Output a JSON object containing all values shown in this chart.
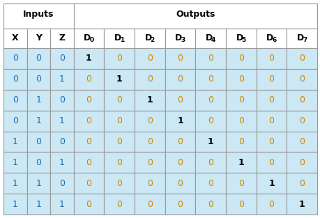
{
  "title_inputs": "Inputs",
  "title_outputs": "Outputs",
  "col_headers_base": [
    "X",
    "Y",
    "Z",
    "D",
    "D",
    "D",
    "D",
    "D",
    "D",
    "D",
    "D"
  ],
  "col_headers_sub": [
    "",
    "",
    "",
    "0",
    "1",
    "2",
    "3",
    "4",
    "5",
    "6",
    "7"
  ],
  "rows": [
    [
      0,
      0,
      0,
      1,
      0,
      0,
      0,
      0,
      0,
      0,
      0
    ],
    [
      0,
      0,
      1,
      0,
      1,
      0,
      0,
      0,
      0,
      0,
      0
    ],
    [
      0,
      1,
      0,
      0,
      0,
      1,
      0,
      0,
      0,
      0,
      0
    ],
    [
      0,
      1,
      1,
      0,
      0,
      0,
      1,
      0,
      0,
      0,
      0
    ],
    [
      1,
      0,
      0,
      0,
      0,
      0,
      0,
      1,
      0,
      0,
      0
    ],
    [
      1,
      0,
      1,
      0,
      0,
      0,
      0,
      0,
      1,
      0,
      0
    ],
    [
      1,
      1,
      0,
      0,
      0,
      0,
      0,
      0,
      0,
      1,
      0
    ],
    [
      1,
      1,
      1,
      0,
      0,
      0,
      0,
      0,
      0,
      0,
      1
    ]
  ],
  "n_input_cols": 3,
  "n_output_cols": 8,
  "header_bg": "#ffffff",
  "row_bg_all": "#cce8f4",
  "border_color": "#999999",
  "input_color": "#1a6eb5",
  "output_zero_color": "#cc8800",
  "output_one_color": "#000000",
  "header_text_color": "#000000",
  "col_header_color": "#000000",
  "figsize": [
    4.6,
    3.13
  ],
  "dpi": 100
}
